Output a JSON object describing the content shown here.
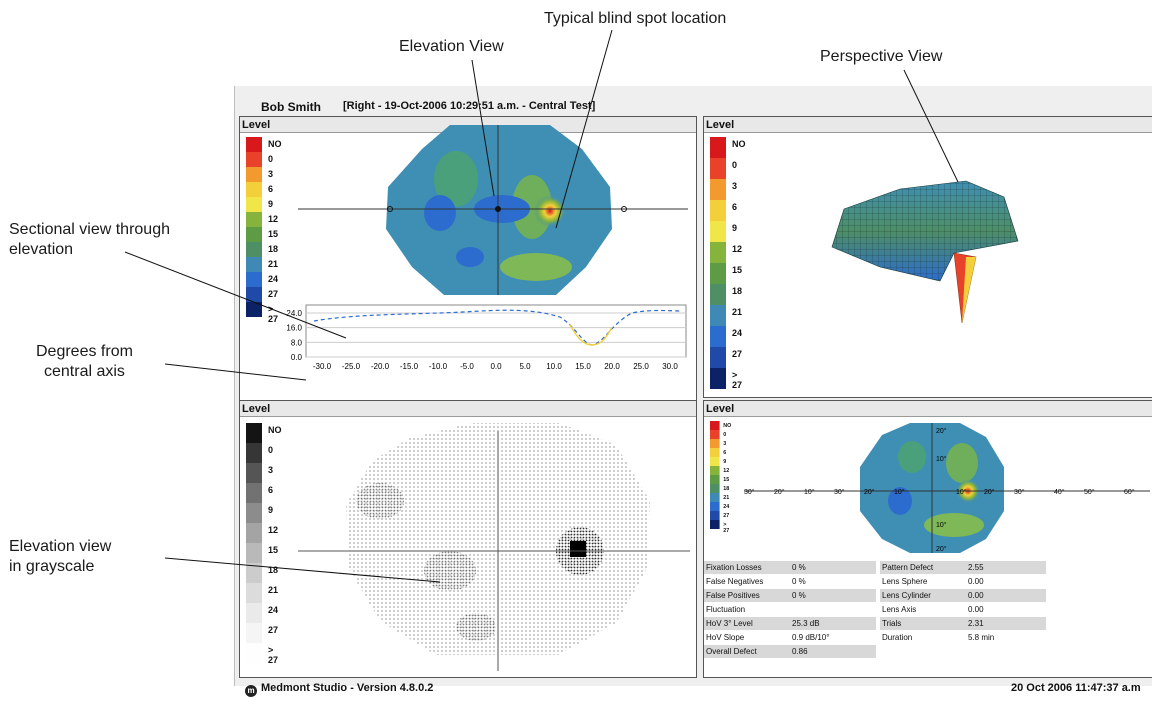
{
  "callouts": {
    "blind_spot": "Typical blind spot location",
    "elevation_view": "Elevation View",
    "perspective_view": "Perspective View",
    "sectional_view": "Sectional view through\nelevation",
    "degrees": "Degrees from\ncentral axis",
    "grayscale": "Elevation view\nin grayscale"
  },
  "header": {
    "patient": "Bob Smith",
    "test_info": "[Right - 19-Oct-2006 10:29:51 a.m. - Central Test]"
  },
  "panels": {
    "elevation_title": "Level",
    "perspective_title": "Level",
    "grayscale_title": "Level",
    "contour_title": "Level"
  },
  "legend_levels": [
    "NO",
    "0",
    "3",
    "6",
    "9",
    "12",
    "15",
    "18",
    "21",
    "24",
    "27",
    "> 27"
  ],
  "legend_colors": [
    "#d7191c",
    "#e8432a",
    "#f29a2e",
    "#f3d03a",
    "#f0e64a",
    "#86b33b",
    "#5d9b45",
    "#4e8f66",
    "#3f89b5",
    "#2d6ccf",
    "#1f4aa8",
    "#0b2266"
  ],
  "section_chart": {
    "y_ticks": [
      "24.0",
      "16.0",
      "8.0",
      "0.0"
    ],
    "x_ticks": [
      "-30.0",
      "-25.0",
      "-20.0",
      "-15.0",
      "-10.0",
      "-5.0",
      "0.0",
      "5.0",
      "10.0",
      "15.0",
      "20.0",
      "25.0",
      "30.0"
    ]
  },
  "contour_axis": {
    "horizontal": [
      "30°",
      "20°",
      "10°",
      "30°",
      "20°",
      "10°",
      "10°",
      "20°",
      "30°",
      "40°",
      "50°",
      "60°"
    ],
    "vertical": [
      "20°",
      "10°",
      "10°",
      "20°"
    ]
  },
  "stats_left": [
    {
      "label": "Fixation Losses",
      "value": "0 %"
    },
    {
      "label": "False Negatives",
      "value": "0 %"
    },
    {
      "label": "False Positives",
      "value": "0 %"
    },
    {
      "label": "Fluctuation",
      "value": ""
    },
    {
      "label": "HoV 3° Level",
      "value": "25.3 dB"
    },
    {
      "label": "HoV Slope",
      "value": "0.9 dB/10°"
    },
    {
      "label": "Overall Defect",
      "value": "0.86"
    }
  ],
  "stats_right": [
    {
      "label": "Pattern Defect",
      "value": "2.55"
    },
    {
      "label": "Lens Sphere",
      "value": "0.00"
    },
    {
      "label": "Lens Cylinder",
      "value": "0.00"
    },
    {
      "label": "Lens Axis",
      "value": "0.00"
    },
    {
      "label": "Trials",
      "value": "2.31"
    },
    {
      "label": "Duration",
      "value": "5.8 min"
    }
  ],
  "footer": {
    "app_version": "Medmont Studio - Version 4.8.0.2",
    "timestamp": "20 Oct 2006 11:47:37 a.m",
    "logo_letter": "m"
  }
}
